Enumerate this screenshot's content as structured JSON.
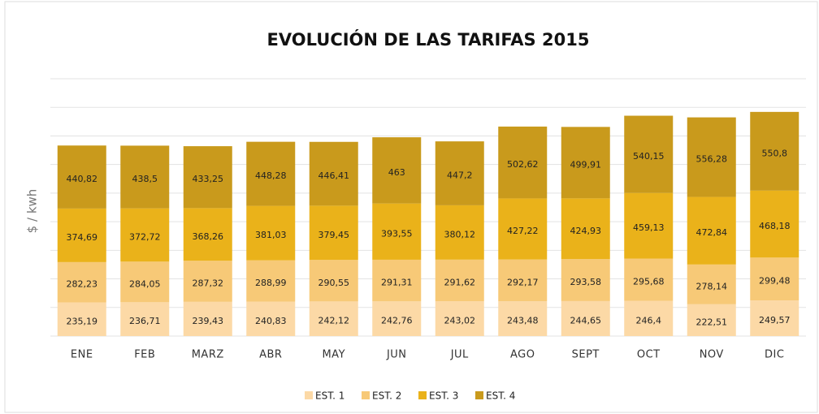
{
  "chart_data": {
    "type": "stacked_bar",
    "title": "EVOLUCIÓN  DE  LAS  TARIFAS  2015",
    "y_label": "$  /  kwh",
    "categories": [
      "ENE",
      "FEB",
      "MARZ",
      "ABR",
      "MAY",
      "JUN",
      "JUL",
      "AGO",
      "SEPT",
      "OCT",
      "NOV",
      "DIC"
    ],
    "series": [
      {
        "name": "EST. 1",
        "color": "#fcd9a6",
        "values": [
          235.19,
          236.71,
          239.43,
          240.83,
          242.12,
          242.76,
          243.02,
          243.48,
          244.65,
          246.4,
          222.51,
          249.57
        ],
        "value_labels": [
          "235,19",
          "236,71",
          "239,43",
          "240,83",
          "242,12",
          "242,76",
          "243,02",
          "243,48",
          "244,65",
          "246,4",
          "222,51",
          "249,57"
        ]
      },
      {
        "name": "EST. 2",
        "color": "#f7c977",
        "values": [
          282.23,
          284.05,
          287.32,
          288.99,
          290.55,
          291.31,
          291.62,
          292.17,
          293.58,
          295.68,
          278.14,
          299.48
        ],
        "value_labels": [
          "282,23",
          "284,05",
          "287,32",
          "288,99",
          "290,55",
          "291,31",
          "291,62",
          "292,17",
          "293,58",
          "295,68",
          "278,14",
          "299,48"
        ]
      },
      {
        "name": "EST. 3",
        "color": "#eab21a",
        "values": [
          374.69,
          372.72,
          368.26,
          381.03,
          379.45,
          393.55,
          380.12,
          427.22,
          424.93,
          459.13,
          472.84,
          468.18
        ],
        "value_labels": [
          "374,69",
          "372,72",
          "368,26",
          "381,03",
          "379,45",
          "393,55",
          "380,12",
          "427,22",
          "424,93",
          "459,13",
          "472,84",
          "468,18"
        ]
      },
      {
        "name": "EST. 4",
        "color": "#c99a1c",
        "values": [
          440.82,
          438.5,
          433.25,
          448.28,
          446.41,
          463,
          447.2,
          502.62,
          499.91,
          540.15,
          556.28,
          550.8
        ],
        "value_labels": [
          "440,82",
          "438,5",
          "433,25",
          "448,28",
          "446,41",
          "463",
          "447,2",
          "502,62",
          "499,91",
          "540,15",
          "556,28",
          "550,8"
        ]
      }
    ],
    "ylim": [
      0,
      1800
    ],
    "yticks": [
      0,
      200,
      400,
      600,
      800,
      1000,
      1200,
      1400,
      1600,
      1800
    ],
    "grid": true
  }
}
